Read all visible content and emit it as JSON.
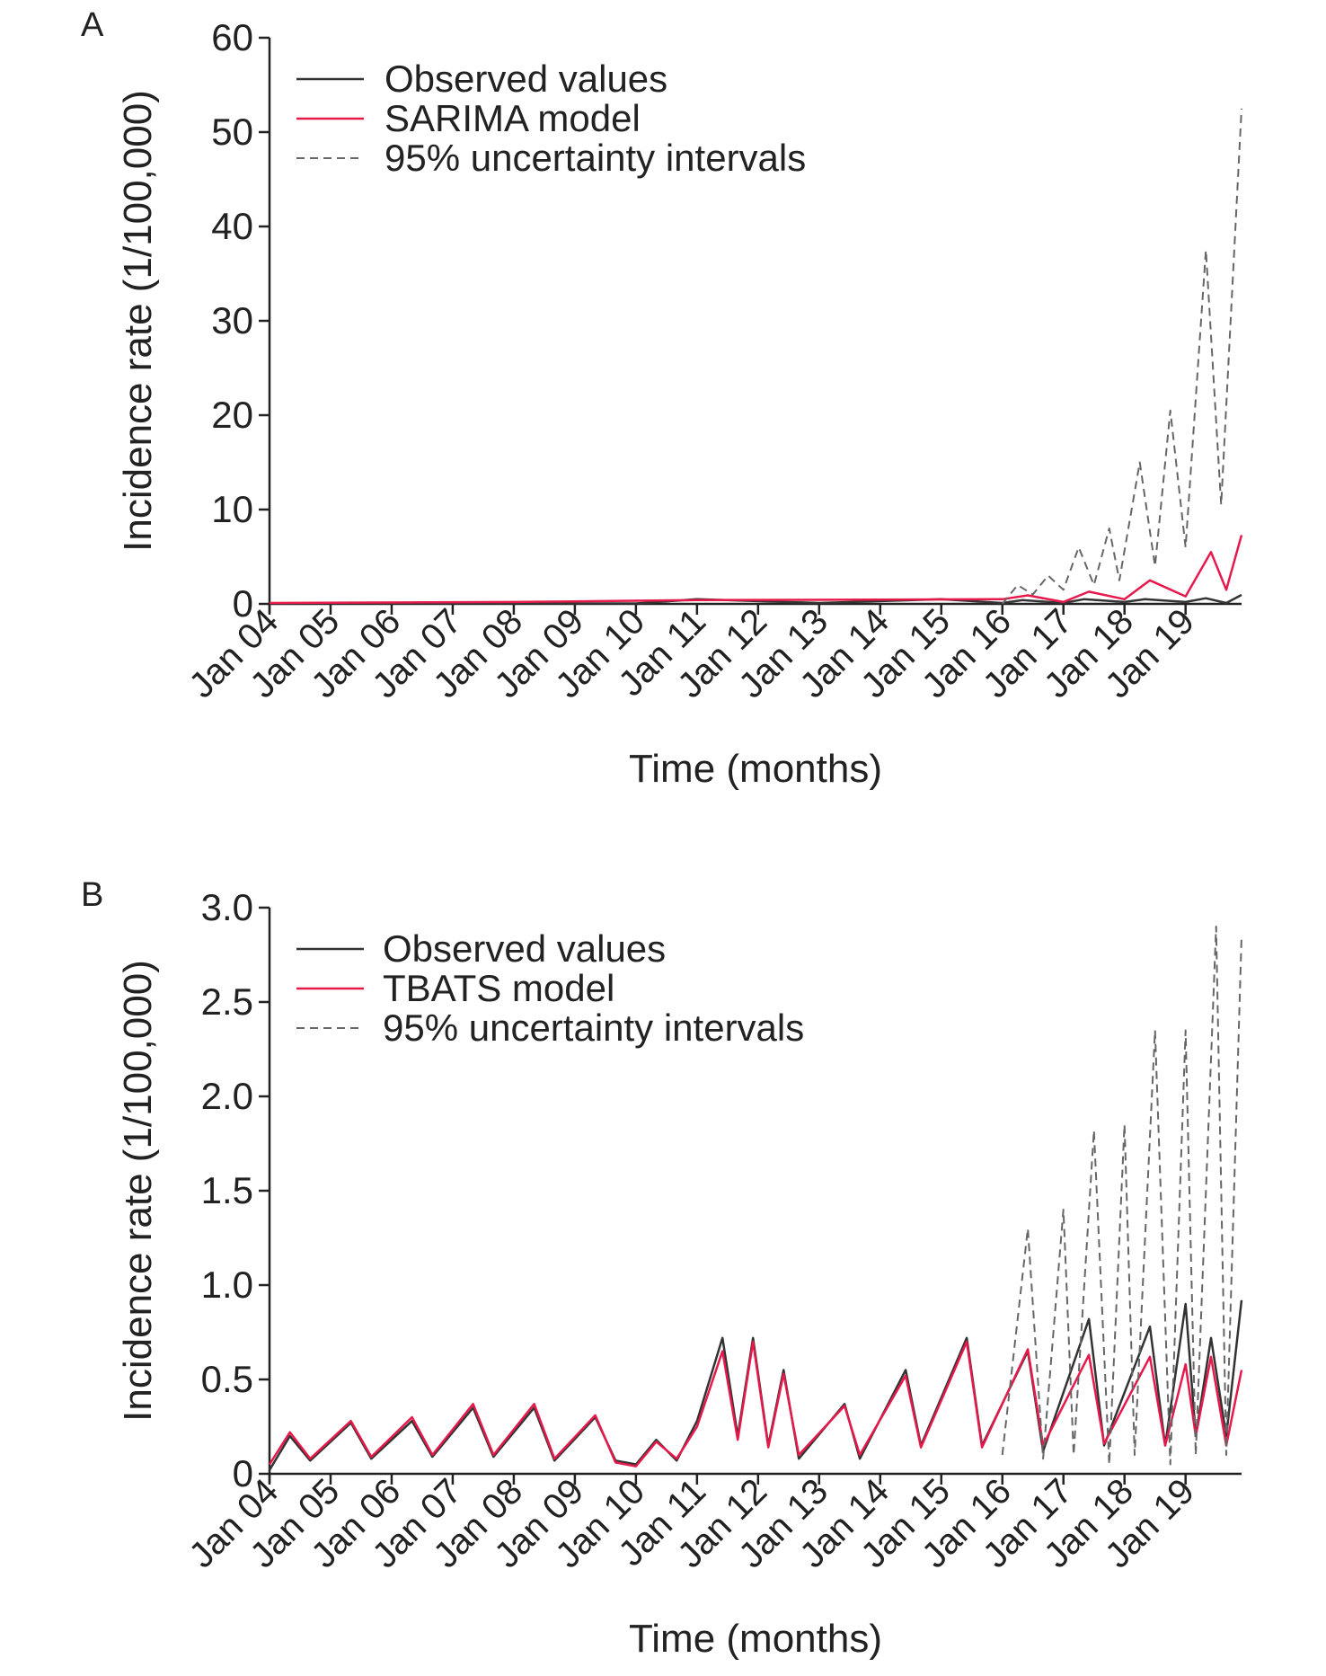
{
  "colors": {
    "observed": "#333333",
    "model": "#e6194b",
    "observed_highlight": "#3c4cc8",
    "interval": "#666666",
    "axis": "#222222"
  },
  "chart_data": [
    {
      "panel": "A",
      "type": "line",
      "xlabel": "Time (months)",
      "ylabel": "Incidence rate (1/100,000)",
      "ylim": [
        0,
        60
      ],
      "yticks": [
        0,
        10,
        20,
        30,
        40,
        50,
        60
      ],
      "ytick_labels": [
        "0",
        "10",
        "20",
        "30",
        "40",
        "50",
        "60"
      ],
      "xlim": [
        "Jan 04",
        "Dec 19"
      ],
      "xtick_labels": [
        "Jan 04",
        "Jan 05",
        "Jan 06",
        "Jan 07",
        "Jan 08",
        "Jan 09",
        "Jan 10",
        "Jan 11",
        "Jan 12",
        "Jan 13",
        "Jan 14",
        "Jan 15",
        "Jan 16",
        "Jan 17",
        "Jan 18",
        "Jan 19"
      ],
      "legend_position": "top-left",
      "series": [
        {
          "name": "Observed values",
          "style": "solid",
          "color": "observed",
          "points": [
            [
              "Jan 04",
              0.05
            ],
            [
              "Jan 10",
              0.05
            ],
            [
              "Jan 11",
              0.5
            ],
            [
              "Jan 13",
              0.1
            ],
            [
              "Jan 15",
              0.5
            ],
            [
              "Jan 16",
              0.1
            ],
            [
              "May 16",
              0.4
            ],
            [
              "Jan 17",
              0.1
            ],
            [
              "May 17",
              0.5
            ],
            [
              "Jan 18",
              0.2
            ],
            [
              "May 18",
              0.5
            ],
            [
              "Jan 19",
              0.2
            ],
            [
              "May 19",
              0.6
            ],
            [
              "Sep 19",
              0.1
            ],
            [
              "Dec 19",
              0.95
            ]
          ]
        },
        {
          "name": "SARIMA model",
          "style": "solid",
          "color": "model",
          "points": [
            [
              "Jan 04",
              0.1
            ],
            [
              "Jan 08",
              0.2
            ],
            [
              "Jan 11",
              0.4
            ],
            [
              "Jan 16",
              0.5
            ],
            [
              "Jun 16",
              0.9
            ],
            [
              "Jan 17",
              0.2
            ],
            [
              "Jun 17",
              1.3
            ],
            [
              "Jan 18",
              0.5
            ],
            [
              "Jun 18",
              2.5
            ],
            [
              "Jan 19",
              0.8
            ],
            [
              "Jun 19",
              5.5
            ],
            [
              "Sep 19",
              1.5
            ],
            [
              "Dec 19",
              7.3
            ]
          ]
        },
        {
          "name": "95% uncertainty intervals",
          "style": "dashed",
          "color": "interval",
          "points": [
            [
              "Jan 16",
              0.0
            ],
            [
              "Apr 16",
              2.0
            ],
            [
              "Jul 16",
              1.0
            ],
            [
              "Oct 16",
              3.0
            ],
            [
              "Jan 17",
              1.5
            ],
            [
              "Apr 17",
              6.0
            ],
            [
              "Jul 17",
              2.0
            ],
            [
              "Oct 17",
              8.0
            ],
            [
              "Dec 17",
              2.5
            ],
            [
              "Apr 18",
              15.0
            ],
            [
              "Jul 18",
              4.0
            ],
            [
              "Oct 18",
              20.5
            ],
            [
              "Jan 19",
              6.0
            ],
            [
              "May 19",
              37.5
            ],
            [
              "Aug 19",
              10.5
            ],
            [
              "Dec 19",
              52.5
            ]
          ]
        }
      ]
    },
    {
      "panel": "B",
      "type": "line",
      "xlabel": "Time (months)",
      "ylabel": "Incidence rate (1/100,000)",
      "ylim": [
        0,
        3.0
      ],
      "yticks": [
        0,
        0.5,
        1.0,
        1.5,
        2.0,
        2.5,
        3.0
      ],
      "ytick_labels": [
        "0",
        "0.5",
        "1.0",
        "1.5",
        "2.0",
        "2.5",
        "3.0"
      ],
      "xlim": [
        "Jan 04",
        "Dec 19"
      ],
      "xtick_labels": [
        "Jan 04",
        "Jan 05",
        "Jan 06",
        "Jan 07",
        "Jan 08",
        "Jan 09",
        "Jan 10",
        "Jan 11",
        "Jan 12",
        "Jan 13",
        "Jan 14",
        "Jan 15",
        "Jan 16",
        "Jan 17",
        "Jan 18",
        "Jan 19"
      ],
      "legend_position": "top-left",
      "series": [
        {
          "name": "Observed values",
          "style": "solid",
          "color": "observed",
          "points": [
            [
              "Jan 04",
              0.02
            ],
            [
              "May 04",
              0.2
            ],
            [
              "Sep 04",
              0.07
            ],
            [
              "May 05",
              0.27
            ],
            [
              "Sep 05",
              0.08
            ],
            [
              "May 06",
              0.28
            ],
            [
              "Sep 06",
              0.09
            ],
            [
              "May 07",
              0.35
            ],
            [
              "Sep 07",
              0.09
            ],
            [
              "May 08",
              0.35
            ],
            [
              "Sep 08",
              0.07
            ],
            [
              "May 09",
              0.3
            ],
            [
              "Sep 09",
              0.07
            ],
            [
              "Jan 10",
              0.05
            ],
            [
              "May 10",
              0.18
            ],
            [
              "Sep 10",
              0.07
            ],
            [
              "Jan 11",
              0.28
            ],
            [
              "Jun 11",
              0.72
            ],
            [
              "Sep 11",
              0.2
            ],
            [
              "Dec 11",
              0.72
            ],
            [
              "Mar 12",
              0.15
            ],
            [
              "Jun 12",
              0.55
            ],
            [
              "Sep 12",
              0.08
            ],
            [
              "Jun 13",
              0.37
            ],
            [
              "Sep 13",
              0.08
            ],
            [
              "Jun 14",
              0.55
            ],
            [
              "Sep 14",
              0.15
            ],
            [
              "Jun 15",
              0.72
            ],
            [
              "Sep 15",
              0.15
            ],
            [
              "Jun 16",
              0.65
            ],
            [
              "Sep 16",
              0.12
            ],
            [
              "Jun 17",
              0.82
            ],
            [
              "Sep 17",
              0.15
            ],
            [
              "Jun 18",
              0.78
            ],
            [
              "Sep 18",
              0.15
            ],
            [
              "Jan 19",
              0.9
            ],
            [
              "Mar 19",
              0.2
            ],
            [
              "Jun 19",
              0.72
            ],
            [
              "Sep 19",
              0.2
            ],
            [
              "Dec 19",
              0.92
            ]
          ]
        },
        {
          "name": "TBATS model",
          "style": "solid",
          "color": "model",
          "points": [
            [
              "Jan 04",
              0.05
            ],
            [
              "May 04",
              0.22
            ],
            [
              "Sep 04",
              0.08
            ],
            [
              "May 05",
              0.28
            ],
            [
              "Sep 05",
              0.09
            ],
            [
              "May 06",
              0.3
            ],
            [
              "Sep 06",
              0.1
            ],
            [
              "May 07",
              0.37
            ],
            [
              "Sep 07",
              0.1
            ],
            [
              "May 08",
              0.37
            ],
            [
              "Sep 08",
              0.08
            ],
            [
              "May 09",
              0.31
            ],
            [
              "Sep 09",
              0.06
            ],
            [
              "Jan 10",
              0.04
            ],
            [
              "May 10",
              0.17
            ],
            [
              "Sep 10",
              0.08
            ],
            [
              "Jan 11",
              0.25
            ],
            [
              "Jun 11",
              0.65
            ],
            [
              "Sep 11",
              0.18
            ],
            [
              "Dec 11",
              0.7
            ],
            [
              "Mar 12",
              0.14
            ],
            [
              "Jun 12",
              0.53
            ],
            [
              "Sep 12",
              0.1
            ],
            [
              "Jun 13",
              0.36
            ],
            [
              "Sep 13",
              0.1
            ],
            [
              "Jun 14",
              0.52
            ],
            [
              "Sep 14",
              0.14
            ],
            [
              "Jun 15",
              0.7
            ],
            [
              "Sep 15",
              0.14
            ],
            [
              "Jun 16",
              0.66
            ],
            [
              "Sep 16",
              0.15
            ],
            [
              "Jun 17",
              0.63
            ],
            [
              "Sep 17",
              0.16
            ],
            [
              "Jun 18",
              0.62
            ],
            [
              "Sep 18",
              0.15
            ],
            [
              "Jan 19",
              0.58
            ],
            [
              "Mar 19",
              0.2
            ],
            [
              "Jun 19",
              0.62
            ],
            [
              "Sep 19",
              0.15
            ],
            [
              "Dec 19",
              0.55
            ]
          ]
        },
        {
          "name": "95% uncertainty intervals",
          "style": "dashed",
          "color": "interval",
          "points": [
            [
              "Jan 16",
              0.1
            ],
            [
              "Jun 16",
              1.3
            ],
            [
              "Sep 16",
              0.08
            ],
            [
              "Jan 17",
              1.4
            ],
            [
              "Mar 17",
              0.1
            ],
            [
              "Jul 17",
              1.82
            ],
            [
              "Oct 17",
              0.05
            ],
            [
              "Jan 18",
              1.85
            ],
            [
              "Mar 18",
              0.1
            ],
            [
              "Jul 18",
              2.35
            ],
            [
              "Oct 18",
              0.05
            ],
            [
              "Jan 19",
              2.35
            ],
            [
              "Mar 19",
              0.1
            ],
            [
              "Jul 19",
              2.9
            ],
            [
              "Sep 19",
              0.1
            ],
            [
              "Dec 19",
              2.85
            ]
          ]
        }
      ]
    }
  ],
  "panels": [
    {
      "label": "A",
      "legend": [
        "Observed values",
        "SARIMA model",
        "95% uncertainty intervals"
      ]
    },
    {
      "label": "B",
      "legend": [
        "Observed values",
        "TBATS model",
        "95% uncertainty intervals"
      ]
    }
  ]
}
